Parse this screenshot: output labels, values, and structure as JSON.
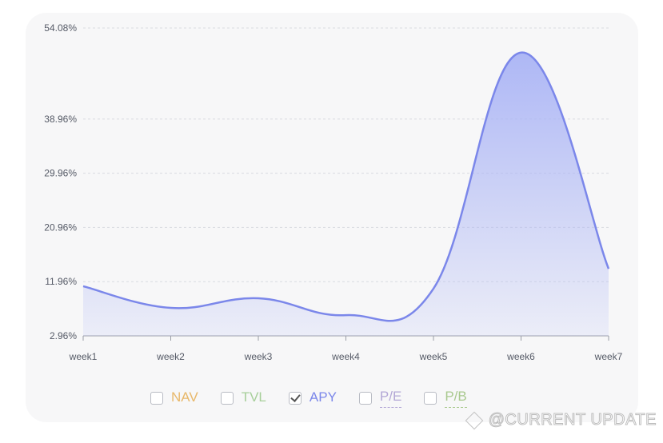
{
  "chart_data": {
    "type": "area",
    "categories": [
      "week1",
      "week2",
      "week3",
      "week4",
      "week5",
      "week6",
      "week7"
    ],
    "series": [
      {
        "name": "APY",
        "values": [
          11.2,
          7.6,
          9.2,
          6.4,
          10.8,
          50.0,
          14.1
        ]
      }
    ],
    "y_ticks": [
      "54.08%",
      "38.96%",
      "29.96%",
      "20.96%",
      "11.96%",
      "2.96%"
    ],
    "y_tick_values": [
      54.08,
      38.96,
      29.96,
      20.96,
      11.96,
      2.96
    ],
    "ylim": [
      2.96,
      54.08
    ],
    "grid": true,
    "line_color": "#7b87ea",
    "fill_color": "#aab4f5"
  },
  "legend": {
    "items": [
      {
        "label": "NAV",
        "checked": false,
        "color": "#e8b86a",
        "dashed": false
      },
      {
        "label": "TVL",
        "checked": false,
        "color": "#a7cf9a",
        "dashed": false
      },
      {
        "label": "APY",
        "checked": true,
        "color": "#7b87ea",
        "dashed": false
      },
      {
        "label": "P/E",
        "checked": false,
        "color": "#b3a7d6",
        "dashed": true
      },
      {
        "label": "P/B",
        "checked": false,
        "color": "#a9c98e",
        "dashed": true
      }
    ]
  },
  "watermark": {
    "text": "@CURRENT UPDATE"
  }
}
